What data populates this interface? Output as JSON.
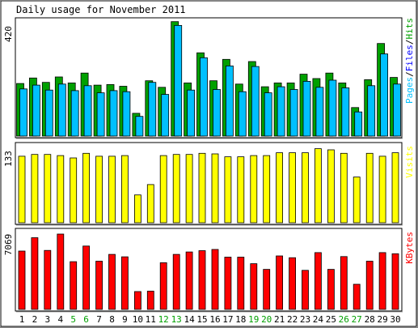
{
  "chart_data": {
    "type": "bar",
    "title": "Daily usage for November 2011",
    "categories": [
      "1",
      "2",
      "3",
      "4",
      "5",
      "6",
      "7",
      "8",
      "9",
      "10",
      "11",
      "12",
      "13",
      "14",
      "15",
      "16",
      "17",
      "18",
      "19",
      "20",
      "21",
      "22",
      "23",
      "24",
      "25",
      "26",
      "27",
      "28",
      "29",
      "30"
    ],
    "weekend_days": [
      "5",
      "6",
      "12",
      "13",
      "19",
      "20",
      "26",
      "27"
    ],
    "panels": [
      {
        "name": "Pages/Files/Hits",
        "ymax": 420,
        "series": [
          {
            "name": "Hits",
            "color": "#00a000",
            "values": [
              192,
              212,
              196,
              216,
              194,
              230,
              186,
              188,
              182,
              83,
              202,
              178,
              418,
              194,
              304,
              202,
              280,
              190,
              272,
              180,
              194,
              194,
              226,
              210,
              230,
              194,
              104,
              206,
              338,
              214
            ]
          },
          {
            "name": "Files",
            "color": "#0000ff",
            "values": [
              0,
              0,
              0,
              0,
              0,
              0,
              0,
              0,
              0,
              0,
              0,
              0,
              0,
              0,
              0,
              0,
              0,
              0,
              0,
              0,
              0,
              0,
              0,
              0,
              0,
              0,
              0,
              0,
              0,
              0
            ]
          },
          {
            "name": "Pages",
            "color": "#00c0ff",
            "values": [
              172,
              186,
              168,
              190,
              166,
              184,
              158,
              166,
              162,
              72,
              196,
              152,
              404,
              168,
              286,
              170,
              256,
              162,
              254,
              158,
              180,
              170,
              200,
              178,
              204,
              176,
              88,
              184,
              300,
              190
            ]
          }
        ]
      },
      {
        "name": "Visits",
        "ymax": 133,
        "series": [
          {
            "name": "Visits",
            "color": "#ffff00",
            "values": [
              115,
              118,
              118,
              116,
              112,
              120,
              115,
              115,
              116,
              48,
              66,
              116,
              118,
              118,
              120,
              119,
              114,
              114,
              116,
              116,
              121,
              121,
              121,
              128,
              126,
              120,
              79,
              120,
              115,
              121
            ]
          }
        ]
      },
      {
        "name": "KBytes",
        "ymax": 7069,
        "series": [
          {
            "name": "KBytes",
            "color": "#ff0000",
            "values": [
              5300,
              6520,
              5360,
              6850,
              4340,
              5760,
              4380,
              5000,
              4780,
              1620,
              1660,
              4240,
              5000,
              5220,
              5340,
              5450,
              4750,
              4750,
              4150,
              3640,
              4860,
              4700,
              3550,
              5160,
              3640,
              4800,
              2280,
              4380,
              5160,
              5060
            ]
          }
        ]
      }
    ]
  }
}
